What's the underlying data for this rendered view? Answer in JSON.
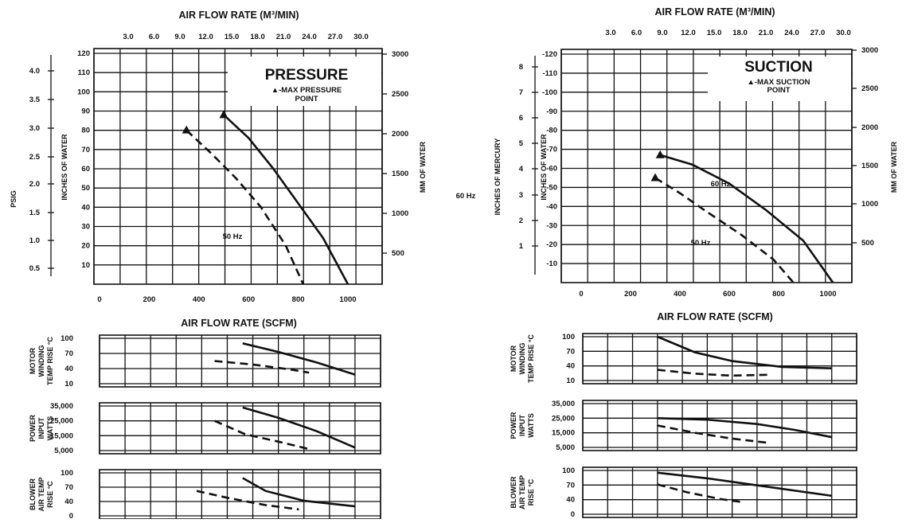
{
  "chart_data": [
    {
      "type": "line",
      "panel": "pressure",
      "title": "PRESSURE",
      "legend_text": "▲-MAX PRESSURE POINT",
      "legend_line1": "▲-MAX PRESSURE",
      "legend_line2": "POINT",
      "top_axis_label": "AIR FLOW RATE (M³/MIN)",
      "top_ticks": [
        "3.0",
        "6.0",
        "9.0",
        "12.0",
        "15.0",
        "18.0",
        "21.0",
        "24.0",
        "27.0",
        "30.0"
      ],
      "xlabel": "AIR FLOW RATE (SCFM)",
      "x_ticks": [
        "0",
        "200",
        "400",
        "600",
        "800",
        "1000"
      ],
      "xlim": [
        0,
        1100
      ],
      "ylabel": "INCHES OF WATER",
      "y_ticks": [
        "120",
        "110",
        "100",
        "90",
        "80",
        "70",
        "60",
        "50",
        "40",
        "30",
        "20",
        "10"
      ],
      "ylim": [
        0,
        120
      ],
      "y_log": false,
      "y2label": "MM OF WATER",
      "y2_ticks": [
        "3000",
        "2500",
        "2000",
        "1500",
        "1000",
        "500"
      ],
      "y3label": "PSIG",
      "y3_ticks": [
        "4.0",
        "3.5",
        "3.0",
        "2.5",
        "2.0",
        "1.5",
        "1.0",
        "0.5"
      ],
      "grid": true,
      "series": [
        {
          "name": "60 Hz",
          "dash": false,
          "points": [
            [
              500,
              88
            ],
            [
              600,
              76
            ],
            [
              700,
              60
            ],
            [
              800,
              42
            ],
            [
              900,
              24
            ],
            [
              1000,
              0
            ]
          ],
          "max_point": [
            500,
            88
          ]
        },
        {
          "name": "50 Hz",
          "dash": true,
          "points": [
            [
              350,
              80
            ],
            [
              450,
              68
            ],
            [
              550,
              55
            ],
            [
              650,
              40
            ],
            [
              750,
              20
            ],
            [
              820,
              0
            ]
          ],
          "max_point": [
            350,
            80
          ]
        }
      ]
    },
    {
      "type": "line",
      "panel": "suction",
      "title": "SUCTION",
      "legend_text": "▲-MAX SUCTION POINT",
      "legend_line1": "▲-MAX SUCTION",
      "legend_line2": "POINT",
      "top_axis_label": "AIR FLOW RATE (M³/MIN)",
      "top_ticks": [
        "3.0",
        "6.0",
        "9.0",
        "12.0",
        "15.0",
        "18.0",
        "21.0",
        "24.0",
        "27.0",
        "30.0"
      ],
      "xlabel": "AIR FLOW RATE (SCFM)",
      "x_ticks": [
        "0",
        "200",
        "400",
        "600",
        "800",
        "1000"
      ],
      "xlim": [
        0,
        1100
      ],
      "ylabel": "INCHES OF WATER",
      "y_ticks": [
        "-120",
        "-110",
        "-100",
        "-90",
        "-80",
        "-70",
        "-60",
        "-50",
        "-40",
        "-30",
        "-20",
        "-10"
      ],
      "ylim": [
        0,
        -120
      ],
      "y_log": false,
      "y2label": "MM OF WATER",
      "y2_ticks": [
        "3000",
        "2500",
        "2000",
        "1500",
        "1000",
        "500"
      ],
      "y3label": "INCHES OF MERCURY",
      "y3_ticks": [
        "8",
        "7",
        "6",
        "5",
        "4",
        "3",
        "2",
        "1"
      ],
      "grid": true,
      "series": [
        {
          "name": "60 Hz",
          "dash": false,
          "points": [
            [
              320,
              -67
            ],
            [
              450,
              -62
            ],
            [
              600,
              -52
            ],
            [
              750,
              -38
            ],
            [
              900,
              -22
            ],
            [
              1020,
              0
            ]
          ],
          "max_point": [
            320,
            -67
          ]
        },
        {
          "name": "50 Hz",
          "dash": true,
          "points": [
            [
              300,
              -55
            ],
            [
              400,
              -47
            ],
            [
              500,
              -38
            ],
            [
              650,
              -25
            ],
            [
              780,
              -12
            ],
            [
              860,
              0
            ]
          ],
          "max_point": [
            300,
            -55
          ]
        }
      ]
    },
    {
      "type": "line",
      "panel": "pressure-motor-temp",
      "ylabel_lines": [
        "MOTOR",
        "WINDING",
        "TEMP RISE °C"
      ],
      "y_ticks": [
        "100",
        "70",
        "40",
        "10"
      ],
      "ylim": [
        10,
        100
      ],
      "y_log": false,
      "xlim": [
        0,
        1100
      ],
      "grid": true,
      "series": [
        {
          "name": "60 Hz",
          "dash": false,
          "points": [
            [
              560,
              90
            ],
            [
              700,
              73
            ],
            [
              850,
              52
            ],
            [
              1000,
              28
            ]
          ]
        },
        {
          "name": "50 Hz",
          "dash": true,
          "points": [
            [
              450,
              55
            ],
            [
              600,
              48
            ],
            [
              750,
              38
            ],
            [
              820,
              32
            ]
          ]
        }
      ]
    },
    {
      "type": "line",
      "panel": "pressure-power",
      "ylabel_lines": [
        "POWER",
        "INPUT",
        "WATTS"
      ],
      "y_ticks": [
        "35,000",
        "25,000",
        "15,000",
        "5,000"
      ],
      "ylim": [
        5000,
        35000
      ],
      "y_log": false,
      "xlim": [
        0,
        1100
      ],
      "grid": true,
      "series": [
        {
          "name": "60 Hz",
          "dash": false,
          "points": [
            [
              560,
              34000
            ],
            [
              700,
              27000
            ],
            [
              850,
              18000
            ],
            [
              1000,
              7000
            ]
          ]
        },
        {
          "name": "50 Hz",
          "dash": true,
          "points": [
            [
              450,
              25000
            ],
            [
              570,
              16000
            ],
            [
              700,
              11000
            ],
            [
              820,
              6000
            ]
          ]
        }
      ]
    },
    {
      "type": "line",
      "panel": "pressure-blower-temp",
      "ylabel_lines": [
        "BLOWER",
        "AIR TEMP",
        "RISE °C"
      ],
      "y_ticks": [
        "100",
        "70",
        "40",
        "0"
      ],
      "ylim": [
        0,
        100
      ],
      "y_log": false,
      "xlim": [
        0,
        1100
      ],
      "grid": true,
      "series": [
        {
          "name": "60 Hz",
          "dash": false,
          "points": [
            [
              560,
              88
            ],
            [
              650,
              58
            ],
            [
              800,
              35
            ],
            [
              1000,
              22
            ]
          ]
        },
        {
          "name": "50 Hz",
          "dash": true,
          "points": [
            [
              380,
              58
            ],
            [
              500,
              42
            ],
            [
              650,
              25
            ],
            [
              780,
              15
            ]
          ]
        }
      ]
    },
    {
      "type": "line",
      "panel": "suction-motor-temp",
      "ylabel_lines": [
        "MOTOR",
        "WINDING",
        "TEMP RISE °C"
      ],
      "y_ticks": [
        "100",
        "70",
        "40",
        "10"
      ],
      "ylim": [
        10,
        100
      ],
      "y_log": false,
      "xlim": [
        0,
        1100
      ],
      "grid": true,
      "series": [
        {
          "name": "60 Hz",
          "dash": false,
          "points": [
            [
              300,
              100
            ],
            [
              450,
              68
            ],
            [
              600,
              50
            ],
            [
              800,
              38
            ],
            [
              1000,
              35
            ]
          ]
        },
        {
          "name": "50 Hz",
          "dash": true,
          "points": [
            [
              300,
              32
            ],
            [
              450,
              24
            ],
            [
              600,
              20
            ],
            [
              750,
              22
            ]
          ]
        }
      ]
    },
    {
      "type": "line",
      "panel": "suction-power",
      "ylabel_lines": [
        "POWER",
        "INPUT",
        "WATTS"
      ],
      "y_ticks": [
        "35,000",
        "25,000",
        "15,000",
        "5,000"
      ],
      "ylim": [
        5000,
        35000
      ],
      "y_log": false,
      "xlim": [
        0,
        1100
      ],
      "grid": true,
      "series": [
        {
          "name": "60 Hz",
          "dash": false,
          "points": [
            [
              300,
              25000
            ],
            [
              500,
              24000
            ],
            [
              700,
              21000
            ],
            [
              850,
              17000
            ],
            [
              1000,
              12000
            ]
          ]
        },
        {
          "name": "50 Hz",
          "dash": true,
          "points": [
            [
              300,
              20000
            ],
            [
              450,
              15000
            ],
            [
              600,
              11000
            ],
            [
              750,
              8000
            ]
          ]
        }
      ]
    },
    {
      "type": "line",
      "panel": "suction-blower-temp",
      "ylabel_lines": [
        "BLOWER",
        "AIR TEMP",
        "RISE °C"
      ],
      "y_ticks": [
        "100",
        "70",
        "40",
        "0"
      ],
      "ylim": [
        0,
        100
      ],
      "y_log": false,
      "xlim": [
        0,
        1100
      ],
      "grid": true,
      "series": [
        {
          "name": "60 Hz",
          "dash": false,
          "points": [
            [
              300,
              95
            ],
            [
              500,
              82
            ],
            [
              700,
              66
            ],
            [
              900,
              50
            ],
            [
              1000,
              42
            ]
          ]
        },
        {
          "name": "50 Hz",
          "dash": true,
          "points": [
            [
              300,
              68
            ],
            [
              420,
              50
            ],
            [
              550,
              35
            ],
            [
              650,
              27
            ]
          ]
        }
      ]
    }
  ]
}
